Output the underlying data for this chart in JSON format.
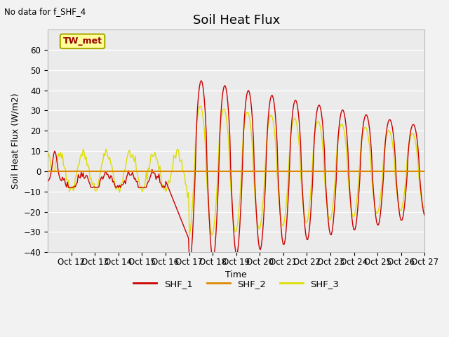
{
  "title": "Soil Heat Flux",
  "subtitle": "No data for f_SHF_4",
  "ylabel": "Soil Heat Flux (W/m2)",
  "xlabel": "Time",
  "annotation": "TW_met",
  "ylim": [
    -40,
    70
  ],
  "yticks": [
    -40,
    -30,
    -20,
    -10,
    0,
    10,
    20,
    30,
    40,
    50,
    60
  ],
  "xtick_labels": [
    "Oct 12",
    "Oct 13",
    "Oct 14",
    "Oct 15",
    "Oct 16",
    "Oct 17",
    "Oct 18",
    "Oct 19",
    "Oct 20",
    "Oct 21",
    "Oct 22",
    "Oct 23",
    "Oct 24",
    "Oct 25",
    "Oct 26",
    "Oct 27"
  ],
  "color_shf1": "#cc0000",
  "color_shf2": "#dd8800",
  "color_shf3": "#dddd00",
  "legend_labels": [
    "SHF_1",
    "SHF_2",
    "SHF_3"
  ],
  "bg_color": "#ebebeb",
  "grid_color": "#ffffff",
  "fig_bg": "#f2f2f2",
  "title_fontsize": 13,
  "label_fontsize": 9,
  "tick_fontsize": 8.5,
  "annotation_color": "#990000"
}
